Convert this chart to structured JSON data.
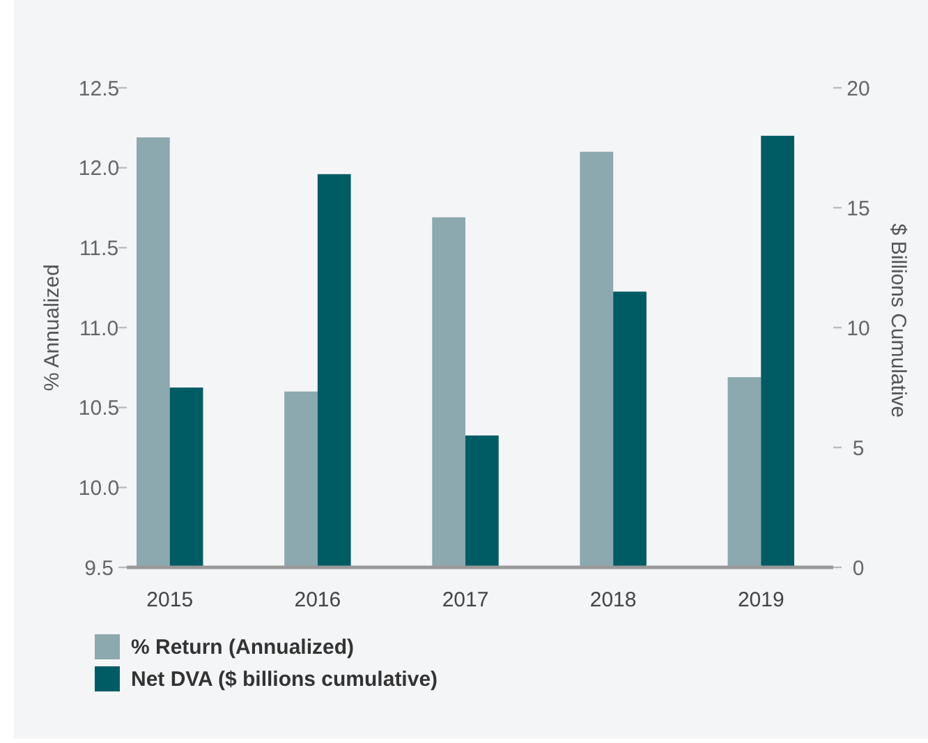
{
  "chart_data": {
    "type": "bar",
    "categories": [
      "2015",
      "2016",
      "2017",
      "2018",
      "2019"
    ],
    "series": [
      {
        "name": "% Return (Annualized)",
        "color": "#8ba9ae",
        "values": [
          12.19,
          10.6,
          11.69,
          12.1,
          10.69
        ]
      },
      {
        "name": "Net DVA ($ billions cumulative)",
        "color": "#005c64",
        "values": [
          7.5,
          16.4,
          5.5,
          11.5,
          18.0
        ],
        "axis": "y2"
      }
    ],
    "ylabel": "% Annualized",
    "y2label": "$ Billions Cumulative",
    "ylim": [
      9.5,
      12.5
    ],
    "yticks": [
      9.5,
      {
        "value": 10,
        "label": "10.0"
      },
      10.5,
      {
        "value": 11,
        "label": "11.0"
      },
      11.5,
      {
        "value": 12,
        "label": "12.0"
      },
      12.5
    ],
    "y2lim": [
      0,
      20
    ],
    "y2ticks": [
      0,
      5,
      10,
      15,
      20
    ],
    "grid": false,
    "legend": "bottom left"
  }
}
